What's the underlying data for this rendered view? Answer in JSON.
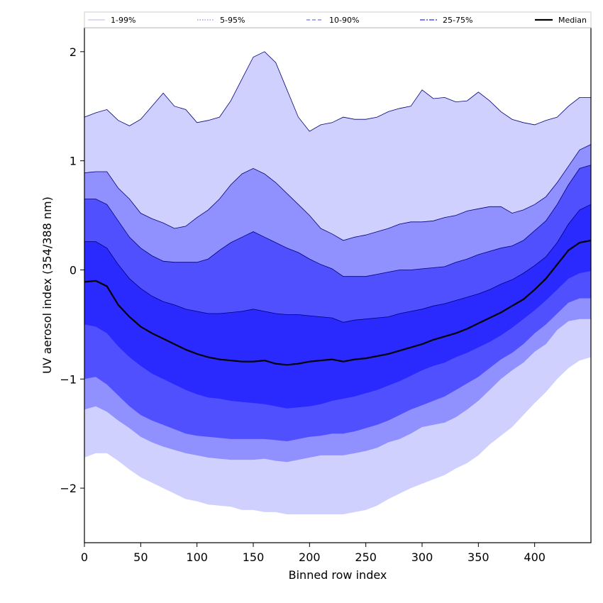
{
  "chart_data": {
    "type": "area",
    "xlabel": "Binned row index",
    "ylabel": "UV aerosol index (354/388 nm)",
    "xlim": [
      0,
      450
    ],
    "ylim": [
      -2.5,
      2.22
    ],
    "x_ticks": [
      0,
      50,
      100,
      150,
      200,
      250,
      300,
      350,
      400
    ],
    "x_tick_labels": [
      "0",
      "50",
      "100",
      "150",
      "200",
      "250",
      "300",
      "350",
      "400"
    ],
    "y_ticks": [
      -2,
      -1,
      0,
      1,
      2
    ],
    "y_tick_labels": [
      "−2",
      "−1",
      "0",
      "1",
      "2"
    ],
    "grid": false,
    "legend_position": "top",
    "x": [
      0,
      10,
      20,
      30,
      40,
      50,
      60,
      70,
      80,
      90,
      100,
      110,
      120,
      130,
      140,
      150,
      160,
      170,
      180,
      190,
      200,
      210,
      220,
      230,
      240,
      250,
      260,
      270,
      280,
      290,
      300,
      310,
      320,
      330,
      340,
      350,
      360,
      370,
      380,
      390,
      400,
      410,
      420,
      430,
      440,
      450
    ],
    "series": [
      {
        "name": "1-99%",
        "color": "#d0d0ff",
        "linestyle": "solid",
        "upper": [
          1.4,
          1.44,
          1.47,
          1.37,
          1.32,
          1.38,
          1.5,
          1.62,
          1.5,
          1.47,
          1.35,
          1.37,
          1.4,
          1.55,
          1.75,
          1.95,
          2.0,
          1.9,
          1.65,
          1.4,
          1.27,
          1.33,
          1.35,
          1.4,
          1.38,
          1.38,
          1.4,
          1.45,
          1.48,
          1.5,
          1.65,
          1.57,
          1.58,
          1.54,
          1.55,
          1.63,
          1.55,
          1.45,
          1.38,
          1.35,
          1.33,
          1.37,
          1.4,
          1.5,
          1.58,
          1.58
        ],
        "lower": [
          -1.72,
          -1.68,
          -1.68,
          -1.75,
          -1.83,
          -1.9,
          -1.95,
          -2.0,
          -2.05,
          -2.1,
          -2.12,
          -2.15,
          -2.16,
          -2.17,
          -2.2,
          -2.2,
          -2.22,
          -2.22,
          -2.24,
          -2.24,
          -2.24,
          -2.24,
          -2.24,
          -2.24,
          -2.22,
          -2.2,
          -2.16,
          -2.1,
          -2.05,
          -2.0,
          -1.96,
          -1.92,
          -1.88,
          -1.82,
          -1.77,
          -1.7,
          -1.6,
          -1.52,
          -1.44,
          -1.33,
          -1.22,
          -1.12,
          -1.0,
          -0.9,
          -0.83,
          -0.8
        ]
      },
      {
        "name": "5-95%",
        "color": "#9090ff",
        "linestyle": "dotted",
        "upper": [
          0.89,
          0.9,
          0.9,
          0.75,
          0.65,
          0.52,
          0.47,
          0.43,
          0.38,
          0.4,
          0.48,
          0.55,
          0.65,
          0.78,
          0.88,
          0.93,
          0.88,
          0.8,
          0.7,
          0.6,
          0.5,
          0.38,
          0.33,
          0.27,
          0.3,
          0.32,
          0.35,
          0.38,
          0.42,
          0.44,
          0.44,
          0.45,
          0.48,
          0.5,
          0.54,
          0.56,
          0.58,
          0.58,
          0.52,
          0.55,
          0.6,
          0.67,
          0.8,
          0.95,
          1.1,
          1.15
        ],
        "lower": [
          -1.28,
          -1.25,
          -1.3,
          -1.38,
          -1.45,
          -1.53,
          -1.58,
          -1.62,
          -1.65,
          -1.68,
          -1.7,
          -1.72,
          -1.73,
          -1.74,
          -1.74,
          -1.74,
          -1.73,
          -1.75,
          -1.76,
          -1.74,
          -1.72,
          -1.7,
          -1.7,
          -1.7,
          -1.68,
          -1.66,
          -1.63,
          -1.58,
          -1.55,
          -1.5,
          -1.44,
          -1.42,
          -1.4,
          -1.35,
          -1.28,
          -1.2,
          -1.1,
          -1.0,
          -0.92,
          -0.85,
          -0.75,
          -0.68,
          -0.55,
          -0.47,
          -0.45,
          -0.45
        ]
      },
      {
        "name": "10-90%",
        "color": "#5050ff",
        "linestyle": "dashed",
        "upper": [
          0.65,
          0.65,
          0.6,
          0.45,
          0.3,
          0.2,
          0.13,
          0.08,
          0.07,
          0.07,
          0.07,
          0.1,
          0.18,
          0.25,
          0.3,
          0.35,
          0.3,
          0.25,
          0.2,
          0.16,
          0.1,
          0.05,
          0.01,
          -0.06,
          -0.06,
          -0.06,
          -0.04,
          -0.02,
          0.0,
          0.0,
          0.01,
          0.02,
          0.03,
          0.07,
          0.1,
          0.14,
          0.17,
          0.2,
          0.22,
          0.27,
          0.36,
          0.45,
          0.6,
          0.78,
          0.93,
          0.96
        ],
        "lower": [
          -1.0,
          -0.98,
          -1.05,
          -1.15,
          -1.25,
          -1.33,
          -1.38,
          -1.42,
          -1.46,
          -1.5,
          -1.52,
          -1.53,
          -1.54,
          -1.55,
          -1.55,
          -1.55,
          -1.55,
          -1.56,
          -1.57,
          -1.55,
          -1.53,
          -1.52,
          -1.5,
          -1.5,
          -1.48,
          -1.45,
          -1.42,
          -1.38,
          -1.33,
          -1.28,
          -1.24,
          -1.2,
          -1.16,
          -1.1,
          -1.04,
          -0.98,
          -0.9,
          -0.82,
          -0.76,
          -0.68,
          -0.58,
          -0.5,
          -0.4,
          -0.3,
          -0.26,
          -0.26
        ]
      },
      {
        "name": "25-75%",
        "color": "#2a2aff",
        "linestyle": "dashdot",
        "upper": [
          0.26,
          0.26,
          0.2,
          0.05,
          -0.08,
          -0.17,
          -0.24,
          -0.29,
          -0.32,
          -0.36,
          -0.38,
          -0.4,
          -0.4,
          -0.39,
          -0.38,
          -0.36,
          -0.38,
          -0.4,
          -0.41,
          -0.41,
          -0.42,
          -0.43,
          -0.44,
          -0.48,
          -0.46,
          -0.45,
          -0.44,
          -0.43,
          -0.4,
          -0.38,
          -0.36,
          -0.33,
          -0.31,
          -0.28,
          -0.25,
          -0.22,
          -0.18,
          -0.13,
          -0.09,
          -0.03,
          0.04,
          0.12,
          0.25,
          0.42,
          0.55,
          0.6
        ],
        "lower": [
          -0.5,
          -0.52,
          -0.58,
          -0.7,
          -0.8,
          -0.88,
          -0.95,
          -1.0,
          -1.05,
          -1.1,
          -1.14,
          -1.17,
          -1.18,
          -1.2,
          -1.21,
          -1.22,
          -1.23,
          -1.25,
          -1.27,
          -1.26,
          -1.25,
          -1.23,
          -1.2,
          -1.18,
          -1.16,
          -1.13,
          -1.1,
          -1.06,
          -1.02,
          -0.97,
          -0.92,
          -0.88,
          -0.85,
          -0.8,
          -0.76,
          -0.71,
          -0.66,
          -0.6,
          -0.53,
          -0.45,
          -0.37,
          -0.28,
          -0.18,
          -0.08,
          -0.03,
          -0.01
        ]
      }
    ],
    "median": {
      "name": "Median",
      "color": "#000000",
      "values": [
        -0.11,
        -0.1,
        -0.15,
        -0.32,
        -0.43,
        -0.52,
        -0.58,
        -0.63,
        -0.68,
        -0.73,
        -0.77,
        -0.8,
        -0.82,
        -0.83,
        -0.84,
        -0.84,
        -0.83,
        -0.86,
        -0.87,
        -0.86,
        -0.84,
        -0.83,
        -0.82,
        -0.84,
        -0.82,
        -0.81,
        -0.79,
        -0.77,
        -0.74,
        -0.71,
        -0.68,
        -0.64,
        -0.61,
        -0.58,
        -0.54,
        -0.49,
        -0.44,
        -0.39,
        -0.33,
        -0.27,
        -0.18,
        -0.08,
        0.05,
        0.18,
        0.25,
        0.27
      ]
    }
  }
}
